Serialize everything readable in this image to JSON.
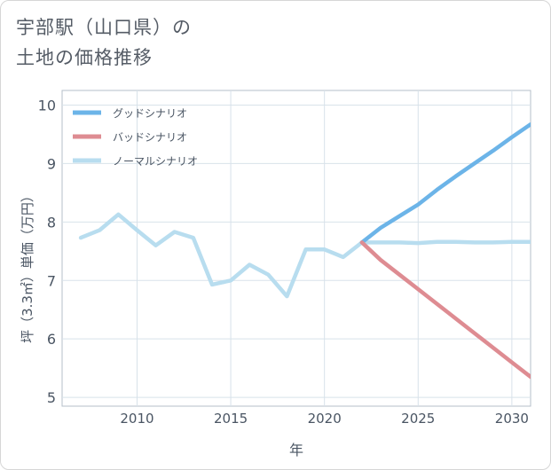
{
  "title": {
    "line1": "宇部駅（山口県）の",
    "line2": "土地の価格推移"
  },
  "chart_data": {
    "type": "line",
    "xlabel": "年",
    "ylabel": "坪（3.3㎡）単価（万円）",
    "xlim": [
      2006,
      2031
    ],
    "ylim": [
      4.85,
      10.25
    ],
    "xticks": [
      2010,
      2015,
      2020,
      2025,
      2030
    ],
    "yticks": [
      5,
      6,
      7,
      8,
      9,
      10
    ],
    "grid": true,
    "legend_position": "top-left",
    "series": [
      {
        "name": "グッドシナリオ",
        "color": "#6cb4e8",
        "x": [
          2022,
          2023,
          2024,
          2025,
          2026,
          2027,
          2028,
          2029,
          2030,
          2031
        ],
        "y": [
          7.65,
          7.9,
          8.1,
          8.3,
          8.55,
          8.78,
          9.0,
          9.22,
          9.45,
          9.67
        ]
      },
      {
        "name": "バッドシナリオ",
        "color": "#de8c92",
        "x": [
          2022,
          2023,
          2024,
          2025,
          2026,
          2027,
          2028,
          2029,
          2030,
          2031
        ],
        "y": [
          7.65,
          7.35,
          7.1,
          6.85,
          6.6,
          6.35,
          6.1,
          5.85,
          5.6,
          5.35
        ]
      },
      {
        "name": "ノーマルシナリオ",
        "color": "#b8ddef",
        "x": [
          2007,
          2008,
          2009,
          2010,
          2011,
          2012,
          2013,
          2014,
          2015,
          2016,
          2017,
          2018,
          2019,
          2020,
          2021,
          2022,
          2023,
          2024,
          2025,
          2026,
          2027,
          2028,
          2029,
          2030,
          2031
        ],
        "y": [
          7.73,
          7.86,
          8.13,
          7.86,
          7.6,
          7.83,
          7.73,
          6.93,
          7.0,
          7.27,
          7.1,
          6.73,
          7.53,
          7.53,
          7.4,
          7.65,
          7.65,
          7.65,
          7.64,
          7.66,
          7.66,
          7.65,
          7.65,
          7.66,
          7.66
        ]
      }
    ]
  }
}
